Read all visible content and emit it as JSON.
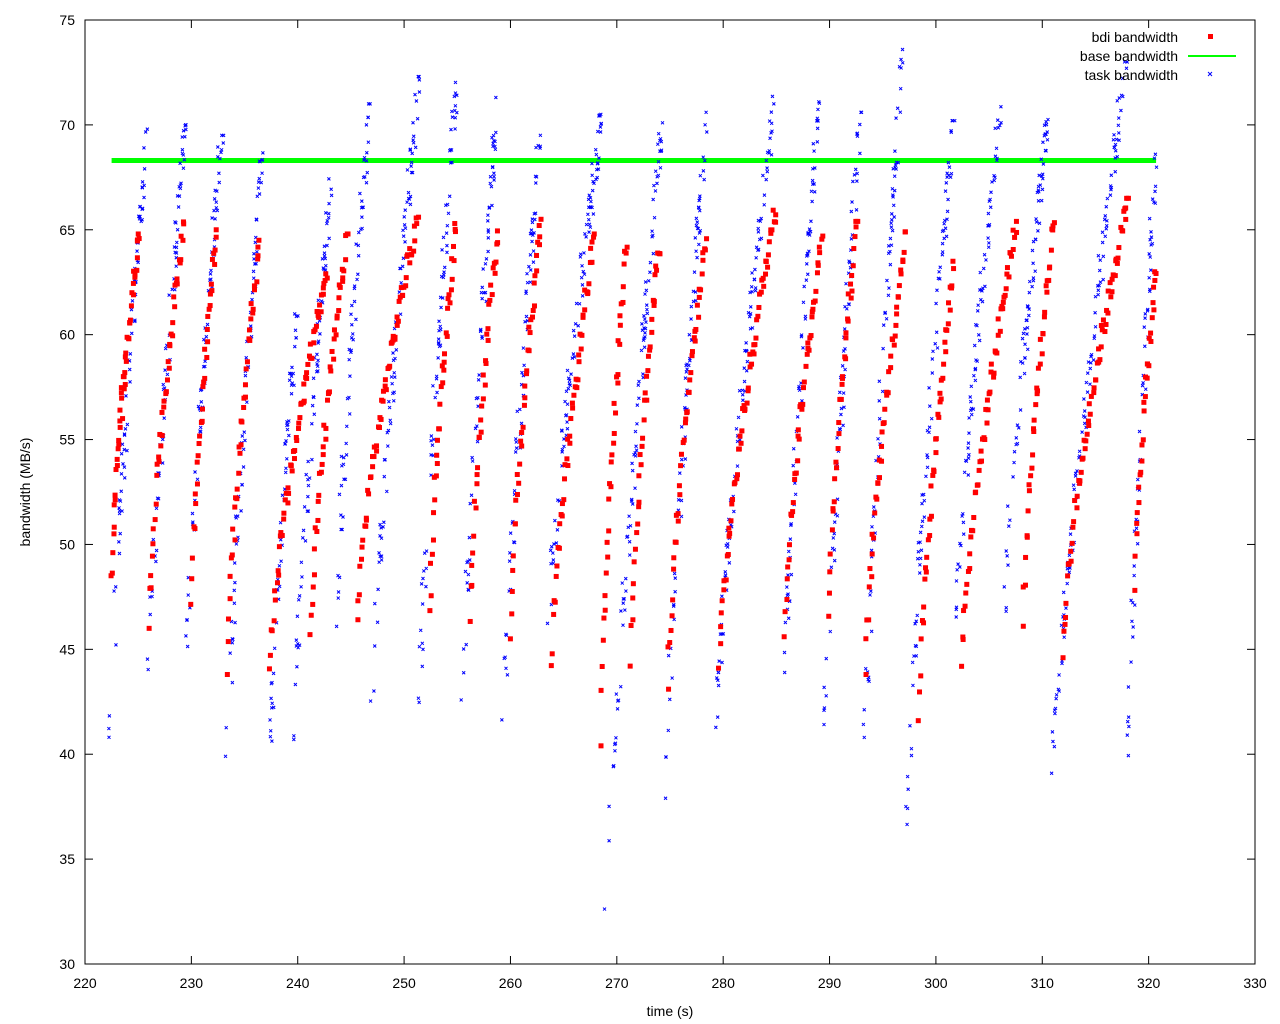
{
  "chart_data": {
    "type": "scatter",
    "xlabel": "time (s)",
    "ylabel": "bandwidth (MB/s)",
    "xlim": [
      220,
      330
    ],
    "ylim": [
      30,
      75
    ],
    "xticks": [
      220,
      230,
      240,
      250,
      260,
      270,
      280,
      290,
      300,
      310,
      320,
      330
    ],
    "yticks": [
      30,
      35,
      40,
      45,
      50,
      55,
      60,
      65,
      70,
      75
    ],
    "grid": false,
    "legend_position": "top-right",
    "series": [
      {
        "name": "bdi bandwidth",
        "marker": "square",
        "color": "#ff0000",
        "range": [
          222.5,
          320.7
        ],
        "cycles": [
          [
            222.5,
            223.6,
            48,
            58
          ],
          [
            223.6,
            225.1,
            56,
            64.8
          ],
          [
            226.0,
            229.3,
            46,
            65.4
          ],
          [
            230.0,
            232.4,
            47,
            65
          ],
          [
            233.4,
            236.4,
            43.8,
            64.5
          ],
          [
            237.4,
            242.8,
            44,
            63.2
          ],
          [
            241.2,
            244.7,
            45.4,
            64.8
          ],
          [
            245.6,
            251.3,
            46.4,
            65.6
          ],
          [
            252.4,
            254.9,
            46.5,
            65.3
          ],
          [
            256.2,
            258.8,
            45.8,
            65.1
          ],
          [
            260.0,
            262.9,
            45.5,
            65.5
          ],
          [
            263.9,
            267.9,
            43.8,
            64.8
          ],
          [
            268.5,
            270.9,
            40.4,
            64.6
          ],
          [
            271.3,
            274.0,
            44.2,
            64.4
          ],
          [
            274.8,
            278.4,
            43.1,
            64.6
          ],
          [
            279.6,
            285.0,
            43.7,
            66.2
          ],
          [
            285.8,
            289.3,
            45.6,
            64.7
          ],
          [
            289.9,
            292.6,
            46.5,
            65.4
          ],
          [
            293.4,
            297.2,
            43.8,
            64.9
          ],
          [
            298.4,
            301.7,
            41.6,
            63.5
          ],
          [
            302.4,
            307.6,
            44,
            65.4
          ],
          [
            308.2,
            311.1,
            46.1,
            65.6
          ],
          [
            311.9,
            318.1,
            44.6,
            66.5
          ],
          [
            318.7,
            320.7,
            47.8,
            63
          ]
        ]
      },
      {
        "name": "base bandwidth",
        "marker": "line",
        "color": "#00ff00",
        "x": [
          222.5,
          320.7
        ],
        "y": [
          68.3,
          68.3
        ]
      },
      {
        "name": "task bandwidth",
        "marker": "cross",
        "color": "#0000ff",
        "range": [
          222.3,
          320.7
        ],
        "cycles": [
          [
            222.3,
            225.8,
            40.3,
            69.8
          ],
          [
            226.0,
            229.4,
            43.1,
            70.0
          ],
          [
            229.5,
            232.9,
            44.6,
            69.5
          ],
          [
            233.4,
            236.8,
            39.9,
            69.5
          ],
          [
            237.3,
            239.9,
            38.8,
            61.2
          ],
          [
            239.6,
            243.2,
            40.7,
            67.8
          ],
          [
            243.5,
            246.8,
            45.3,
            71.0
          ],
          [
            247.0,
            251.4,
            42.3,
            72.3
          ],
          [
            251.3,
            255.0,
            40.5,
            72.6
          ],
          [
            255.5,
            258.8,
            42.3,
            71.6
          ],
          [
            259.3,
            262.8,
            40.8,
            69.8
          ],
          [
            263.3,
            268.6,
            44.7,
            70.5
          ],
          [
            268.9,
            274.2,
            31.4,
            70.1
          ],
          [
            274.5,
            278.5,
            37.9,
            70.6
          ],
          [
            279.2,
            284.9,
            40.4,
            71.5
          ],
          [
            285.5,
            289.0,
            40.1,
            71.1
          ],
          [
            289.4,
            292.9,
            38.6,
            70.6
          ],
          [
            293.2,
            296.9,
            38.6,
            73.6
          ],
          [
            297.2,
            301.6,
            36.4,
            70.2
          ],
          [
            301.9,
            306.1,
            45.8,
            71.2
          ],
          [
            306.4,
            310.6,
            46.5,
            70.3
          ],
          [
            310.9,
            317.9,
            38.4,
            73.0
          ],
          [
            318.0,
            320.7,
            38.9,
            68.6
          ]
        ]
      }
    ]
  }
}
